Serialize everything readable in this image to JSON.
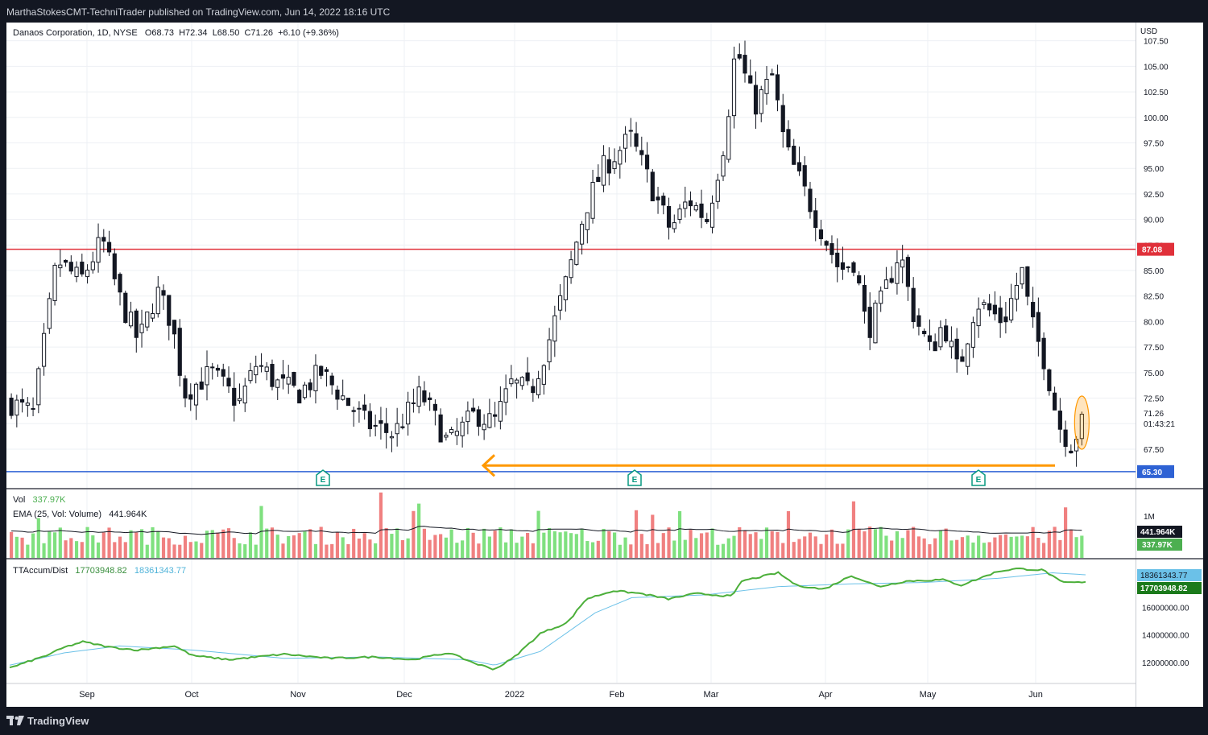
{
  "header": {
    "published": "MarthaStokesCMT-TechniTrader published on TradingView.com, Jun 14, 2022 18:16 UTC"
  },
  "symbol": {
    "name": "Danaos Corporation, 1D, NYSE",
    "open": "O68.73",
    "high": "H72.34",
    "low": "L68.50",
    "close": "C71.26",
    "change": "+6.10 (+9.36%)"
  },
  "price_axis": {
    "currency": "USD",
    "last_price": "71.26",
    "countdown": "01:43:21",
    "resistance_label": "87.08",
    "support_label": "65.30"
  },
  "volume_pane": {
    "label": "Vol",
    "value": "337.97K",
    "ema_label": "EMA (25, Vol: Volume)",
    "ema_value": "441.964K",
    "axis_tick": "1M",
    "ema_badge": "441.964K",
    "vol_badge": "337.97K"
  },
  "accum_pane": {
    "label": "TTAccum/Dist",
    "value1": "17703948.82",
    "value2": "18361343.77",
    "badge1": "18361343.77",
    "badge2": "17703948.82"
  },
  "footer": {
    "brand": "TradingView"
  },
  "earnings_marker": "E",
  "colors": {
    "up_volume": "#7fe07f",
    "down_volume": "#f08080",
    "resistance": "#e0303a",
    "support": "#2e62d4",
    "arrow": "#ff9800",
    "accum": "#4caf3a",
    "accum_avg": "#6bc1e8"
  },
  "chart_data": {
    "type": "candlestick",
    "title": "",
    "x_ticks": [
      "Sep",
      "Oct",
      "Nov",
      "Dec",
      "2022",
      "Feb",
      "Mar",
      "Apr",
      "May",
      "Jun"
    ],
    "price_ticks": [
      67.5,
      70.0,
      72.5,
      75.0,
      77.5,
      80.0,
      82.5,
      85.0,
      87.5,
      90.0,
      92.5,
      95.0,
      97.5,
      100.0,
      102.5,
      105.0,
      107.5
    ],
    "ylim": [
      64.5,
      108.5
    ],
    "horizontal_lines": [
      87.08,
      65.3
    ],
    "candle_anchors": [
      [
        0,
        72
      ],
      [
        12,
        71
      ],
      [
        25,
        86
      ],
      [
        38,
        84
      ],
      [
        50,
        88
      ],
      [
        60,
        82
      ],
      [
        70,
        78
      ],
      [
        80,
        83
      ],
      [
        88,
        80
      ],
      [
        95,
        73
      ],
      [
        110,
        75
      ],
      [
        125,
        72
      ],
      [
        135,
        76
      ],
      [
        145,
        74
      ],
      [
        158,
        73
      ],
      [
        170,
        75
      ],
      [
        180,
        73
      ],
      [
        195,
        70
      ],
      [
        210,
        69
      ],
      [
        225,
        73
      ],
      [
        240,
        68
      ],
      [
        255,
        71
      ],
      [
        265,
        70
      ],
      [
        275,
        74
      ],
      [
        285,
        73
      ],
      [
        295,
        78
      ],
      [
        305,
        84
      ],
      [
        315,
        91
      ],
      [
        325,
        95
      ],
      [
        340,
        98
      ],
      [
        345,
        96
      ],
      [
        352,
        93
      ],
      [
        362,
        89
      ],
      [
        372,
        92
      ],
      [
        382,
        90
      ],
      [
        392,
        98
      ],
      [
        398,
        107
      ],
      [
        408,
        101
      ],
      [
        418,
        104
      ],
      [
        425,
        97
      ],
      [
        435,
        93
      ],
      [
        445,
        89
      ],
      [
        455,
        85
      ],
      [
        463,
        86
      ],
      [
        470,
        79
      ],
      [
        478,
        82
      ],
      [
        488,
        87
      ],
      [
        495,
        81
      ],
      [
        505,
        77
      ],
      [
        512,
        80
      ],
      [
        520,
        75
      ],
      [
        530,
        82
      ],
      [
        545,
        80
      ],
      [
        555,
        85
      ],
      [
        560,
        80
      ],
      [
        568,
        76
      ],
      [
        575,
        70
      ],
      [
        582,
        68
      ],
      [
        588,
        70
      ]
    ],
    "candle_count": 198,
    "volume_ticks": [
      "1M"
    ],
    "accum_ticks": [
      12000000,
      14000000,
      16000000
    ],
    "accum_ylim": [
      11000000,
      19000000
    ],
    "accum_anchors": [
      [
        0,
        11.6
      ],
      [
        20,
        12.5
      ],
      [
        30,
        13.1
      ],
      [
        40,
        13.5
      ],
      [
        55,
        13.1
      ],
      [
        70,
        12.9
      ],
      [
        90,
        13.2
      ],
      [
        100,
        12.5
      ],
      [
        120,
        12.2
      ],
      [
        150,
        12.6
      ],
      [
        175,
        12.3
      ],
      [
        200,
        12.4
      ],
      [
        220,
        12.2
      ],
      [
        240,
        12.7
      ],
      [
        255,
        11.9
      ],
      [
        265,
        11.5
      ],
      [
        275,
        12.3
      ],
      [
        290,
        14.1
      ],
      [
        305,
        14.9
      ],
      [
        315,
        16.6
      ],
      [
        330,
        17.2
      ],
      [
        345,
        17.0
      ],
      [
        360,
        16.6
      ],
      [
        375,
        17.0
      ],
      [
        395,
        16.8
      ],
      [
        400,
        17.9
      ],
      [
        420,
        18.5
      ],
      [
        430,
        17.6
      ],
      [
        445,
        17.3
      ],
      [
        460,
        18.3
      ],
      [
        475,
        17.5
      ],
      [
        490,
        17.9
      ],
      [
        510,
        18.0
      ],
      [
        520,
        17.6
      ],
      [
        540,
        18.6
      ],
      [
        550,
        18.8
      ],
      [
        565,
        18.7
      ],
      [
        575,
        17.8
      ],
      [
        588,
        17.8
      ]
    ],
    "accum_avg_anchors": [
      [
        0,
        11.8
      ],
      [
        30,
        12.7
      ],
      [
        60,
        13.2
      ],
      [
        100,
        12.9
      ],
      [
        150,
        12.3
      ],
      [
        200,
        12.4
      ],
      [
        250,
        12.2
      ],
      [
        265,
        11.8
      ],
      [
        290,
        12.8
      ],
      [
        320,
        15.6
      ],
      [
        340,
        16.7
      ],
      [
        380,
        16.9
      ],
      [
        420,
        17.5
      ],
      [
        460,
        17.7
      ],
      [
        500,
        17.8
      ],
      [
        540,
        18.1
      ],
      [
        570,
        18.5
      ],
      [
        588,
        18.36
      ]
    ]
  }
}
